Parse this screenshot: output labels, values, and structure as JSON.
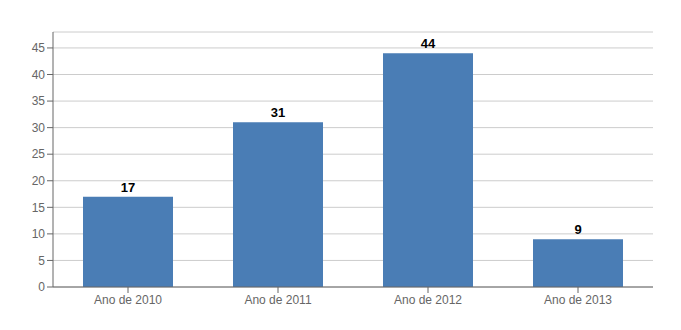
{
  "chart_data": {
    "type": "bar",
    "categories": [
      "Ano de 2010",
      "Ano de 2011",
      "Ano de 2012",
      "Ano de 2013"
    ],
    "values": [
      17,
      31,
      44,
      9
    ],
    "color": "#4a7db5",
    "ylim": [
      0,
      48
    ],
    "yticks": [
      0,
      5,
      10,
      15,
      20,
      25,
      30,
      35,
      40,
      45
    ],
    "grid": true,
    "data_labels": true
  }
}
